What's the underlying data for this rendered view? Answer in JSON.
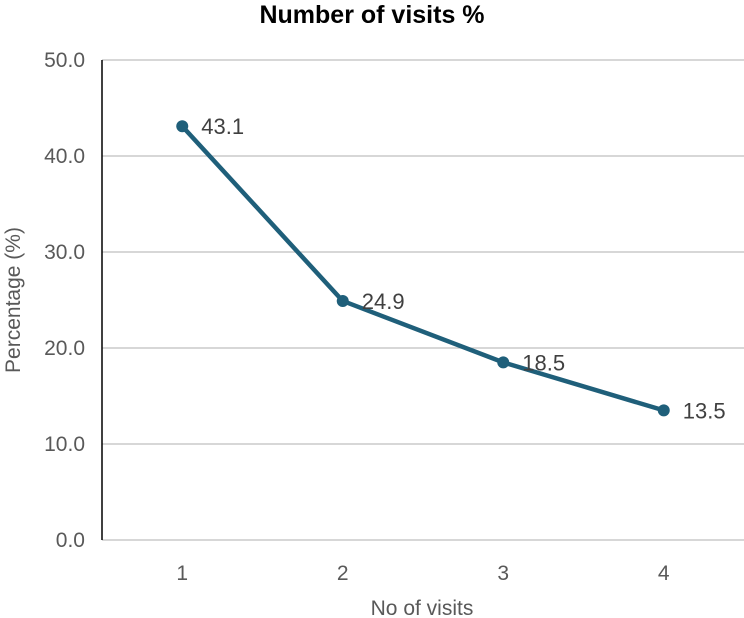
{
  "chart_data": {
    "type": "line",
    "title": "Number of visits %",
    "xlabel": "No of visits",
    "ylabel": "Percentage (%)",
    "categories": [
      "1",
      "2",
      "3",
      "4"
    ],
    "series": [
      {
        "values": [
          43.1,
          24.9,
          18.5,
          13.5
        ],
        "color": "#1f5f7a"
      }
    ],
    "data_labels": [
      "43.1",
      "24.9",
      "18.5",
      "13.5"
    ],
    "y_ticks": [
      "0.0",
      "10.0",
      "20.0",
      "30.0",
      "40.0",
      "50.0"
    ],
    "ylim": [
      0,
      50
    ],
    "grid": true,
    "legend": "none"
  }
}
